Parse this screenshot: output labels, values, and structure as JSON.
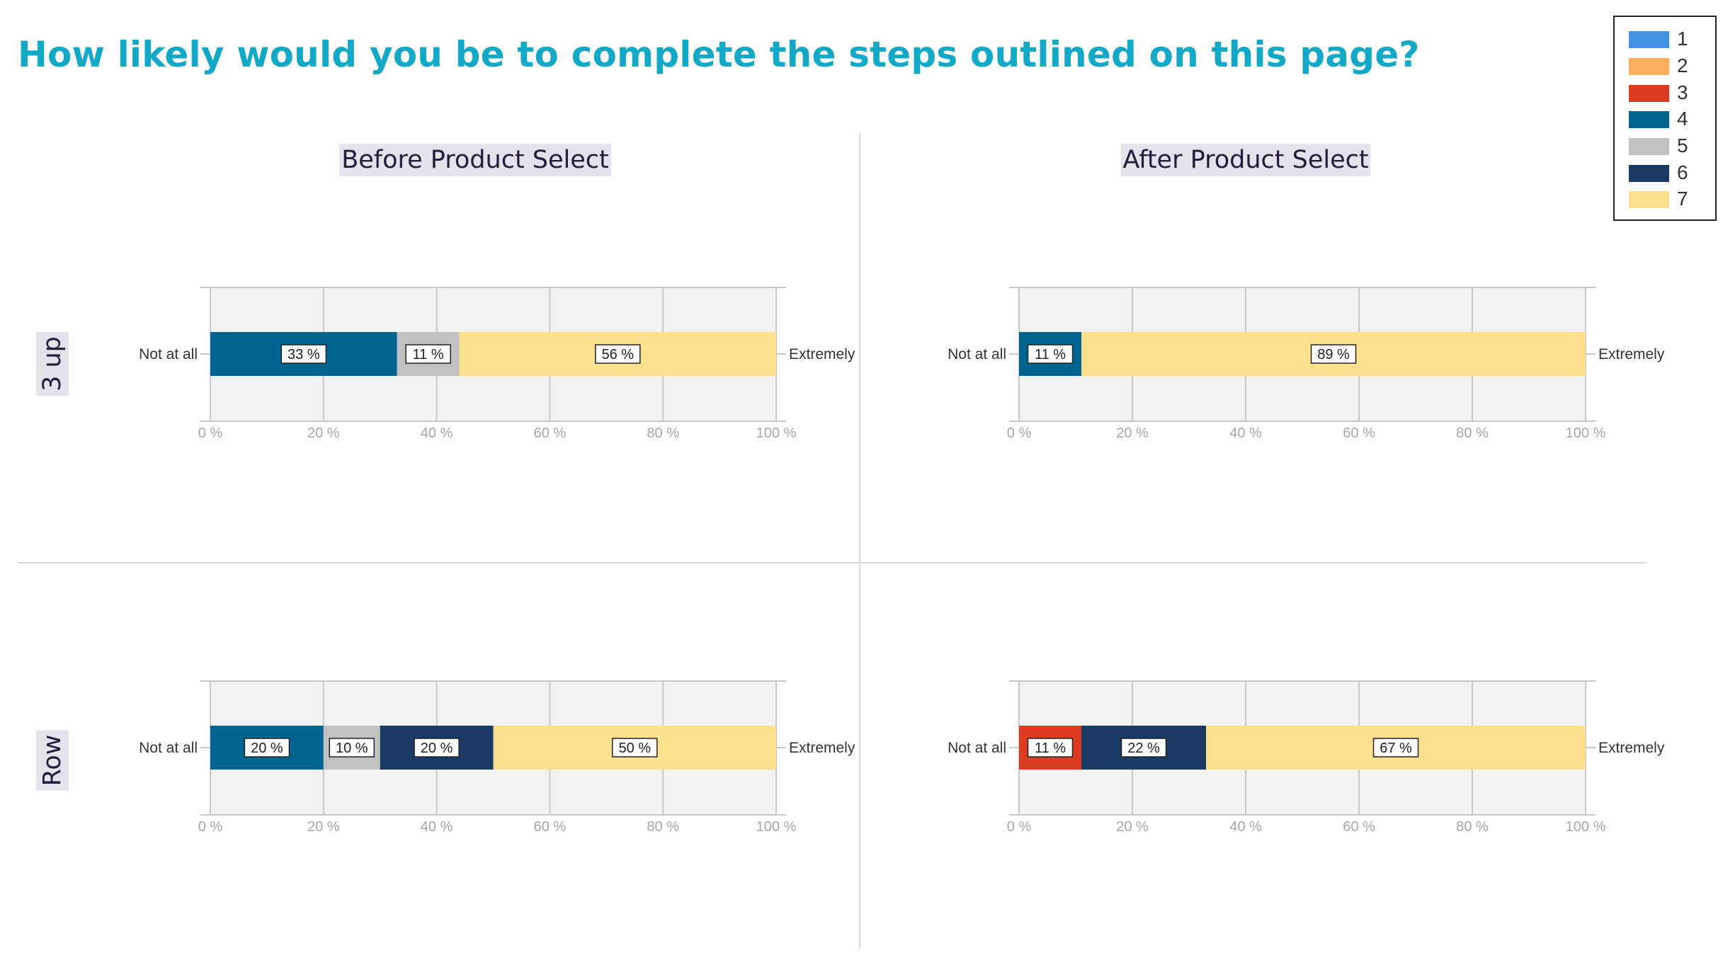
{
  "title": "How likely would you be to complete the steps outlined on this page?",
  "column_titles": [
    "Before Product Select",
    "After Product Select"
  ],
  "row_labels": [
    "3 up",
    "Row"
  ],
  "legend": {
    "entries": [
      {
        "label": "1",
        "color": "#4393e4"
      },
      {
        "label": "2",
        "color": "#fbb15b"
      },
      {
        "label": "3",
        "color": "#dd3b20"
      },
      {
        "label": "4",
        "color": "#006491"
      },
      {
        "label": "5",
        "color": "#c1c1c1"
      },
      {
        "label": "6",
        "color": "#1b3a63"
      },
      {
        "label": "7",
        "color": "#fde08e"
      }
    ]
  },
  "chart_data": [
    {
      "type": "bar",
      "orientation": "horizontal",
      "stacked": true,
      "title": "Before Product Select",
      "row": "3 up",
      "left_label": "Not at all",
      "right_label": "Extremely",
      "xlim": [
        0,
        100
      ],
      "xticks": [
        "0 %",
        "20 %",
        "40 %",
        "60 %",
        "80 %",
        "100 %"
      ],
      "series": [
        {
          "name": "4",
          "value": 33,
          "label": "33 %"
        },
        {
          "name": "5",
          "value": 11,
          "label": "11 %"
        },
        {
          "name": "7",
          "value": 56,
          "label": "56 %"
        }
      ]
    },
    {
      "type": "bar",
      "orientation": "horizontal",
      "stacked": true,
      "title": "After Product Select",
      "row": "3 up",
      "left_label": "Not at all",
      "right_label": "Extremely",
      "xlim": [
        0,
        100
      ],
      "xticks": [
        "0 %",
        "20 %",
        "40 %",
        "60 %",
        "80 %",
        "100 %"
      ],
      "series": [
        {
          "name": "4",
          "value": 11,
          "label": "11 %"
        },
        {
          "name": "7",
          "value": 89,
          "label": "89 %"
        }
      ]
    },
    {
      "type": "bar",
      "orientation": "horizontal",
      "stacked": true,
      "title": "Before Product Select",
      "row": "Row",
      "left_label": "Not at all",
      "right_label": "Extremely",
      "xlim": [
        0,
        100
      ],
      "xticks": [
        "0 %",
        "20 %",
        "40 %",
        "60 %",
        "80 %",
        "100 %"
      ],
      "series": [
        {
          "name": "4",
          "value": 20,
          "label": "20 %"
        },
        {
          "name": "5",
          "value": 10,
          "label": "10 %"
        },
        {
          "name": "6",
          "value": 20,
          "label": "20 %"
        },
        {
          "name": "7",
          "value": 50,
          "label": "50 %"
        }
      ]
    },
    {
      "type": "bar",
      "orientation": "horizontal",
      "stacked": true,
      "title": "After Product Select",
      "row": "Row",
      "left_label": "Not at all",
      "right_label": "Extremely",
      "xlim": [
        0,
        100
      ],
      "xticks": [
        "0 %",
        "20 %",
        "40 %",
        "60 %",
        "80 %",
        "100 %"
      ],
      "series": [
        {
          "name": "3",
          "value": 11,
          "label": "11 %"
        },
        {
          "name": "6",
          "value": 22,
          "label": "22 %"
        },
        {
          "name": "7",
          "value": 67,
          "label": "67 %"
        }
      ]
    }
  ]
}
